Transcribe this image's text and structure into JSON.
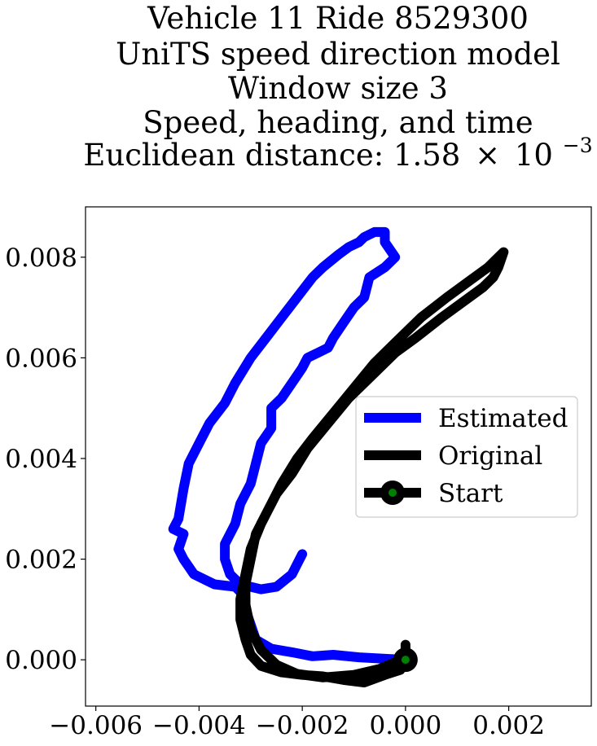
{
  "chart_data": {
    "type": "line",
    "title_lines": [
      "Vehicle 11 Ride 8529300",
      "UniTS speed direction model",
      "Window size 3",
      "Speed, heading, and time"
    ],
    "title_metric_prefix": "Euclidean distance: 1.58",
    "title_metric_times": "×",
    "title_metric_base": "10",
    "title_metric_exponent": "−3",
    "xlim": [
      -0.0062,
      0.0036
    ],
    "ylim": [
      -0.00092,
      0.009
    ],
    "x_ticks": [
      {
        "value": -0.006,
        "label": "−0.006"
      },
      {
        "value": -0.004,
        "label": "−0.004"
      },
      {
        "value": -0.002,
        "label": "−0.002"
      },
      {
        "value": 0.0,
        "label": "0.000"
      },
      {
        "value": 0.002,
        "label": "0.002"
      }
    ],
    "y_ticks": [
      {
        "value": 0.0,
        "label": "0.000"
      },
      {
        "value": 0.002,
        "label": "0.002"
      },
      {
        "value": 0.004,
        "label": "0.004"
      },
      {
        "value": 0.006,
        "label": "0.006"
      },
      {
        "value": 0.008,
        "label": "0.008"
      }
    ],
    "legend_position": "center-right",
    "series": [
      {
        "name": "Estimated",
        "color": "#0000ff",
        "points": [
          [
            0.0,
            0.0
          ],
          [
            -0.0004,
            2e-05
          ],
          [
            -0.0009,
            5e-05
          ],
          [
            -0.0014,
            0.0001
          ],
          [
            -0.0018,
            7e-05
          ],
          [
            -0.0022,
            0.00015
          ],
          [
            -0.0026,
            0.00022
          ],
          [
            -0.0029,
            0.0004
          ],
          [
            -0.003,
            0.0007
          ],
          [
            -0.0031,
            0.001
          ],
          [
            -0.0031,
            0.00125
          ],
          [
            -0.0033,
            0.00145
          ],
          [
            -0.0037,
            0.0015
          ],
          [
            -0.0041,
            0.0017
          ],
          [
            -0.0043,
            0.002
          ],
          [
            -0.0044,
            0.0022
          ],
          [
            -0.0043,
            0.0025
          ],
          [
            -0.0045,
            0.0026
          ],
          [
            -0.0044,
            0.0028
          ],
          [
            -0.0043,
            0.0034
          ],
          [
            -0.0042,
            0.0039
          ],
          [
            -0.004,
            0.0043
          ],
          [
            -0.0038,
            0.0047
          ],
          [
            -0.0035,
            0.0051
          ],
          [
            -0.0033,
            0.0055
          ],
          [
            -0.003,
            0.006
          ],
          [
            -0.0027,
            0.0064
          ],
          [
            -0.0024,
            0.0068
          ],
          [
            -0.0021,
            0.0072
          ],
          [
            -0.0018,
            0.0076
          ],
          [
            -0.0016,
            0.0078
          ],
          [
            -0.0013,
            0.00805
          ],
          [
            -0.0011,
            0.0082
          ],
          [
            -0.0009,
            0.0083
          ],
          [
            -0.0008,
            0.0084
          ],
          [
            -0.0006,
            0.0085
          ],
          [
            -0.0004,
            0.0085
          ],
          [
            -0.0004,
            0.0083
          ],
          [
            -0.0002,
            0.008
          ],
          [
            -0.0004,
            0.0078
          ],
          [
            -0.0007,
            0.0076
          ],
          [
            -0.0008,
            0.0072
          ],
          [
            -0.001,
            0.007
          ],
          [
            -0.0012,
            0.0067
          ],
          [
            -0.0014,
            0.0064
          ],
          [
            -0.0015,
            0.0062
          ],
          [
            -0.0017,
            0.0061
          ],
          [
            -0.0019,
            0.006
          ],
          [
            -0.002,
            0.0058
          ],
          [
            -0.0022,
            0.0055
          ],
          [
            -0.0024,
            0.0052
          ],
          [
            -0.0026,
            0.005
          ],
          [
            -0.0026,
            0.0046
          ],
          [
            -0.0028,
            0.0043
          ],
          [
            -0.0029,
            0.0039
          ],
          [
            -0.003,
            0.0035
          ],
          [
            -0.0032,
            0.0031
          ],
          [
            -0.0033,
            0.0027
          ],
          [
            -0.0035,
            0.0023
          ],
          [
            -0.0035,
            0.002
          ],
          [
            -0.0034,
            0.0017
          ],
          [
            -0.0032,
            0.0015
          ],
          [
            -0.0028,
            0.0014
          ],
          [
            -0.0025,
            0.00145
          ],
          [
            -0.0022,
            0.0017
          ],
          [
            -0.0021,
            0.0019
          ],
          [
            -0.002,
            0.0021
          ]
        ]
      },
      {
        "name": "Original",
        "color": "#000000",
        "points": [
          [
            0.0,
            0.0
          ],
          [
            -0.0001,
            -0.0002
          ],
          [
            -0.0004,
            -0.0003
          ],
          [
            -0.0008,
            -0.00045
          ],
          [
            -0.0012,
            -0.0004
          ],
          [
            -0.0016,
            -0.00033
          ],
          [
            -0.002,
            -0.0003
          ],
          [
            -0.0024,
            -0.00025
          ],
          [
            -0.0028,
            -0.00012
          ],
          [
            -0.003,
            0.0001
          ],
          [
            -0.0031,
            0.0004
          ],
          [
            -0.0032,
            0.0008
          ],
          [
            -0.0032,
            0.0012
          ],
          [
            -0.0031,
            0.0017
          ],
          [
            -0.003,
            0.0022
          ],
          [
            -0.0028,
            0.0027
          ],
          [
            -0.0026,
            0.0031
          ],
          [
            -0.0024,
            0.0035
          ],
          [
            -0.0021,
            0.004
          ],
          [
            -0.0018,
            0.0044
          ],
          [
            -0.0014,
            0.0049
          ],
          [
            -0.001,
            0.0054
          ],
          [
            -0.0006,
            0.0059
          ],
          [
            -0.0002,
            0.0063
          ],
          [
            0.0003,
            0.0068
          ],
          [
            0.0008,
            0.0072
          ],
          [
            0.0012,
            0.0075
          ],
          [
            0.0016,
            0.0078
          ],
          [
            0.0018,
            0.008
          ],
          [
            0.0019,
            0.0081
          ],
          [
            0.0018,
            0.0078
          ],
          [
            0.0017,
            0.0076
          ],
          [
            0.0015,
            0.0074
          ],
          [
            0.0011,
            0.0071
          ],
          [
            0.0007,
            0.0068
          ],
          [
            0.0002,
            0.0064
          ],
          [
            -0.0002,
            0.0061
          ],
          [
            -0.0006,
            0.0057
          ],
          [
            -0.0011,
            0.0052
          ],
          [
            -0.0015,
            0.0047
          ],
          [
            -0.0019,
            0.0042
          ],
          [
            -0.0022,
            0.0037
          ],
          [
            -0.0025,
            0.0033
          ],
          [
            -0.0027,
            0.0029
          ],
          [
            -0.0029,
            0.0025
          ],
          [
            -0.003,
            0.002
          ],
          [
            -0.0031,
            0.0015
          ],
          [
            -0.0031,
            0.0011
          ],
          [
            -0.003,
            0.0006
          ],
          [
            -0.0028,
            0.0002
          ],
          [
            -0.0025,
            -0.0001
          ],
          [
            -0.0021,
            -0.00028
          ],
          [
            -0.0016,
            -0.00035
          ],
          [
            -0.001,
            -0.0003
          ],
          [
            -0.0005,
            -0.00018
          ],
          [
            -0.0002,
            -5e-05
          ],
          [
            0.0,
            0.0
          ],
          [
            0.0,
            0.0003
          ]
        ]
      }
    ],
    "start_marker": {
      "name": "Start",
      "x": 0.0,
      "y": 0.0,
      "outer_color": "#000000",
      "inner_color": "#008000"
    }
  }
}
